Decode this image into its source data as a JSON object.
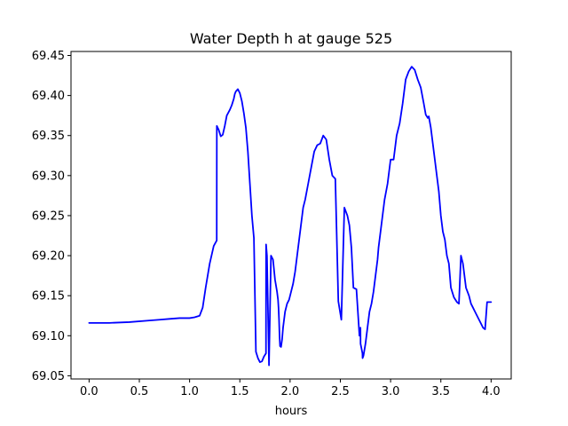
{
  "chart_data": {
    "type": "line",
    "title": "Water Depth h at gauge 525",
    "xlabel": "hours",
    "ylabel": "",
    "xlim": [
      -0.18,
      4.2
    ],
    "ylim": [
      69.046,
      69.455
    ],
    "grid": false,
    "legend": "none",
    "x_ticks": [
      0.0,
      0.5,
      1.0,
      1.5,
      2.0,
      2.5,
      3.0,
      3.5,
      4.0
    ],
    "x_tick_labels": [
      "0.0",
      "0.5",
      "1.0",
      "1.5",
      "2.0",
      "2.5",
      "3.0",
      "3.5",
      "4.0"
    ],
    "y_ticks": [
      69.05,
      69.1,
      69.15,
      69.2,
      69.25,
      69.3,
      69.35,
      69.4,
      69.45
    ],
    "y_tick_labels": [
      "69.05",
      "69.10",
      "69.15",
      "69.20",
      "69.25",
      "69.30",
      "69.35",
      "69.40",
      "69.45"
    ],
    "series": [
      {
        "color": "#0000ff",
        "x": [
          0.0,
          0.2,
          0.4,
          0.6,
          0.7,
          0.8,
          0.9,
          1.0,
          1.05,
          1.1,
          1.13,
          1.16,
          1.2,
          1.24,
          1.27,
          1.271,
          1.29,
          1.31,
          1.33,
          1.35,
          1.37,
          1.4,
          1.42,
          1.44,
          1.45,
          1.46,
          1.48,
          1.5,
          1.52,
          1.54,
          1.56,
          1.58,
          1.6,
          1.62,
          1.64,
          1.66,
          1.68,
          1.7,
          1.72,
          1.74,
          1.76,
          1.761,
          1.77,
          1.79,
          1.81,
          1.83,
          1.85,
          1.87,
          1.88,
          1.885,
          1.89,
          1.895,
          1.9,
          1.91,
          1.92,
          1.93,
          1.95,
          1.97,
          1.99,
          2.01,
          2.03,
          2.05,
          2.07,
          2.09,
          2.11,
          2.13,
          2.15,
          2.18,
          2.21,
          2.24,
          2.27,
          2.3,
          2.33,
          2.36,
          2.39,
          2.42,
          2.45,
          2.48,
          2.51,
          2.54,
          2.57,
          2.59,
          2.61,
          2.63,
          2.66,
          2.69,
          2.7,
          2.701,
          2.72,
          2.721,
          2.73,
          2.75,
          2.77,
          2.79,
          2.81,
          2.83,
          2.85,
          2.87,
          2.88,
          2.9,
          2.92,
          2.94,
          2.97,
          3.0,
          3.03,
          3.06,
          3.09,
          3.12,
          3.15,
          3.18,
          3.21,
          3.24,
          3.27,
          3.3,
          3.33,
          3.35,
          3.36,
          3.37,
          3.38,
          3.4,
          3.42,
          3.44,
          3.46,
          3.48,
          3.5,
          3.52,
          3.54,
          3.56,
          3.58,
          3.6,
          3.63,
          3.66,
          3.68,
          3.7,
          3.72,
          3.75,
          3.78,
          3.8,
          3.82,
          3.84,
          3.86,
          3.88,
          3.9,
          3.92,
          3.94,
          3.96,
          3.98,
          4.0
        ],
        "y": [
          69.116,
          69.116,
          69.117,
          69.119,
          69.12,
          69.121,
          69.122,
          69.122,
          69.123,
          69.125,
          69.135,
          69.16,
          69.19,
          69.212,
          69.219,
          69.362,
          69.357,
          69.349,
          69.351,
          69.362,
          69.375,
          69.382,
          69.388,
          69.396,
          69.402,
          69.405,
          69.408,
          69.403,
          69.393,
          69.378,
          69.36,
          69.33,
          69.29,
          69.25,
          69.222,
          69.08,
          69.072,
          69.067,
          69.068,
          69.074,
          69.078,
          69.214,
          69.2,
          69.063,
          69.2,
          69.195,
          69.17,
          69.155,
          69.145,
          69.135,
          69.12,
          69.1,
          69.087,
          69.086,
          69.095,
          69.11,
          69.13,
          69.14,
          69.145,
          69.155,
          69.165,
          69.18,
          69.2,
          69.22,
          69.24,
          69.26,
          69.27,
          69.29,
          69.31,
          69.33,
          69.338,
          69.34,
          69.35,
          69.345,
          69.32,
          69.3,
          69.296,
          69.143,
          69.12,
          69.26,
          69.25,
          69.238,
          69.21,
          69.16,
          69.158,
          69.1,
          69.11,
          69.09,
          69.078,
          69.072,
          69.075,
          69.09,
          69.11,
          69.13,
          69.14,
          69.155,
          69.175,
          69.195,
          69.21,
          69.23,
          69.25,
          69.27,
          69.29,
          69.32,
          69.32,
          69.35,
          69.365,
          69.39,
          69.42,
          69.43,
          69.436,
          69.432,
          69.42,
          69.41,
          69.39,
          69.376,
          69.374,
          69.372,
          69.374,
          69.36,
          69.34,
          69.32,
          69.3,
          69.28,
          69.25,
          69.23,
          69.22,
          69.2,
          69.19,
          69.16,
          69.148,
          69.142,
          69.14,
          69.2,
          69.19,
          69.16,
          69.15,
          69.14,
          69.135,
          69.13,
          69.125,
          69.12,
          69.115,
          69.11,
          69.108,
          69.142,
          69.142,
          69.142
        ]
      }
    ]
  }
}
